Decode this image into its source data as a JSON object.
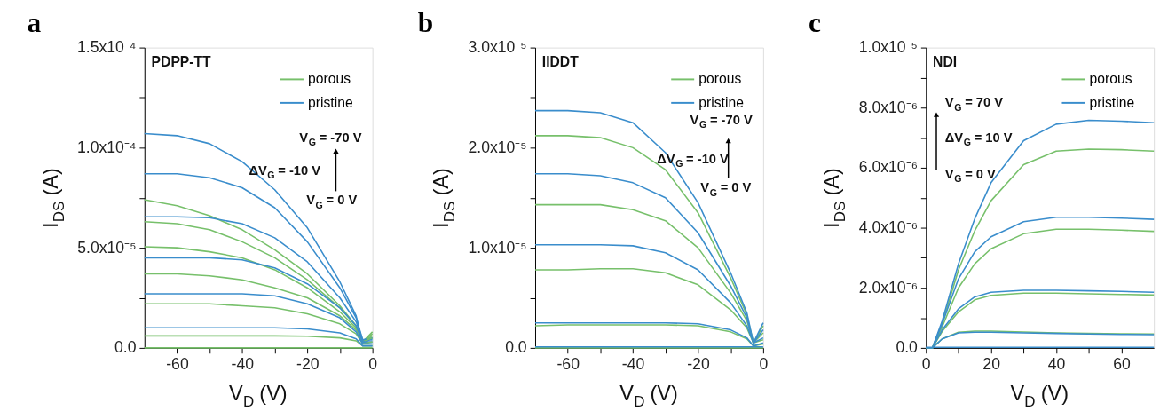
{
  "chart_data": [
    {
      "type": "line",
      "title": "a",
      "xlabel": "V$_{D}$ (V)",
      "ylabel": "I$_{DS}$ (A)",
      "legend": "top right",
      "grid": false,
      "annotations": [
        "PDPP-TT",
        "V$_{G}$ = -70 V",
        "ΔV$_{G}$ = -10 V",
        "V$_{G}$ = 0 V"
      ],
      "xlim": [
        -70,
        0
      ],
      "xticks": [
        -60,
        {
          "value": -50,
          "label": null
        },
        -40,
        {
          "value": -30,
          "label": null
        },
        -20,
        {
          "value": -10,
          "label": null
        },
        0
      ],
      "ylim": [
        0,
        0.00015
      ],
      "yticks": [
        {
          "value": 0,
          "label": "0.0"
        },
        {
          "value": 2.5e-05,
          "label": null
        },
        {
          "value": 5e-05,
          "label": "5.0x10⁻⁵"
        },
        {
          "value": 7.5e-05,
          "label": null
        },
        {
          "value": 0.0001,
          "label": "1.0x10⁻⁴"
        },
        {
          "value": 0.000125,
          "label": null
        },
        {
          "value": 0.00015,
          "label": "1.5x10⁻⁴"
        }
      ],
      "x": [
        -70,
        -60,
        -50,
        -40,
        -30,
        -20,
        -10,
        -5,
        -3,
        0
      ],
      "series": [
        {
          "name": "porous",
          "color": "#77c06b",
          "values": [
            7.4e-05,
            7.1e-05,
            6.6e-05,
            5.9e-05,
            4.9e-05,
            3.7e-05,
            2.1e-05,
            1.1e-05,
            3e-06,
            8e-06
          ]
        },
        {
          "name": "pristine",
          "color": "#3a8dcc",
          "values": [
            0.000107,
            0.000106,
            0.000102,
            9.3e-05,
            7.9e-05,
            6e-05,
            3.3e-05,
            1.6e-05,
            2e-06,
            5e-06
          ]
        },
        {
          "color": "#77c06b",
          "values": [
            6.3e-05,
            6.2e-05,
            5.9e-05,
            5.3e-05,
            4.5e-05,
            3.4e-05,
            2e-05,
            1.1e-05,
            3e-06,
            7e-06
          ]
        },
        {
          "color": "#3a8dcc",
          "values": [
            8.7e-05,
            8.7e-05,
            8.5e-05,
            8e-05,
            7e-05,
            5.3e-05,
            3e-05,
            1.5e-05,
            4e-06,
            5e-06
          ]
        },
        {
          "color": "#77c06b",
          "values": [
            5.05e-05,
            5e-05,
            4.8e-05,
            4.5e-05,
            3.9e-05,
            3e-05,
            1.8e-05,
            1e-05,
            3e-06,
            6e-06
          ]
        },
        {
          "color": "#3a8dcc",
          "values": [
            6.55e-05,
            6.55e-05,
            6.5e-05,
            6.2e-05,
            5.5e-05,
            4.3e-05,
            2.5e-05,
            1.3e-05,
            4e-06,
            4e-06
          ]
        },
        {
          "color": "#77c06b",
          "values": [
            3.7e-05,
            3.7e-05,
            3.6e-05,
            3.4e-05,
            3e-05,
            2.5e-05,
            1.6e-05,
            9e-06,
            3e-06,
            5e-06
          ]
        },
        {
          "color": "#3a8dcc",
          "values": [
            4.5e-05,
            4.5e-05,
            4.5e-05,
            4.4e-05,
            4e-05,
            3.2e-05,
            2e-05,
            1.1e-05,
            3e-06,
            3e-06
          ]
        },
        {
          "color": "#77c06b",
          "values": [
            2.2e-05,
            2.2e-05,
            2.2e-05,
            2.1e-05,
            2e-05,
            1.7e-05,
            1.2e-05,
            7e-06,
            2e-06,
            3e-06
          ]
        },
        {
          "color": "#3a8dcc",
          "values": [
            2.7e-05,
            2.7e-05,
            2.7e-05,
            2.7e-05,
            2.6e-05,
            2.2e-05,
            1.5e-05,
            8e-06,
            2e-06,
            2e-06
          ]
        },
        {
          "color": "#77c06b",
          "values": [
            6e-06,
            6e-06,
            6e-06,
            6e-06,
            6e-06,
            5.8e-06,
            5e-06,
            3.5e-06,
            1e-06,
            1e-06
          ]
        },
        {
          "color": "#3a8dcc",
          "values": [
            1e-05,
            1e-05,
            1e-05,
            1e-05,
            1e-05,
            9.5e-06,
            7.5e-06,
            4.5e-06,
            1e-06,
            1e-06
          ]
        },
        {
          "color": "#77c06b",
          "values": [
            0,
            0,
            0,
            0,
            0,
            0,
            0,
            0,
            0,
            0
          ]
        }
      ]
    },
    {
      "type": "line",
      "title": "b",
      "xlabel": "V$_{D}$ (V)",
      "ylabel": "I$_{DS}$ (A)",
      "legend": "top right",
      "grid": false,
      "annotations": [
        "IIDDT",
        "V$_{G}$ = -70 V",
        "ΔV$_{G}$ = -10 V",
        "V$_{G}$ = 0 V"
      ],
      "xlim": [
        -70,
        0
      ],
      "xticks": [
        -60,
        {
          "value": -50,
          "label": null
        },
        -40,
        {
          "value": -30,
          "label": null
        },
        -20,
        {
          "value": -10,
          "label": null
        },
        0
      ],
      "ylim": [
        0,
        3e-05
      ],
      "yticks": [
        {
          "value": 0,
          "label": "0.0"
        },
        {
          "value": 5e-06,
          "label": null
        },
        {
          "value": 1e-05,
          "label": "1.0x10⁻⁵"
        },
        {
          "value": 1.5e-05,
          "label": null
        },
        {
          "value": 2e-05,
          "label": "2.0x10⁻⁵"
        },
        {
          "value": 2.5e-05,
          "label": null
        },
        {
          "value": 3e-05,
          "label": "3.0x10⁻⁵"
        }
      ],
      "x": [
        -70,
        -60,
        -50,
        -40,
        -30,
        -20,
        -10,
        -5,
        -3,
        0
      ],
      "series": [
        {
          "name": "porous",
          "color": "#77c06b",
          "values": [
            2.12e-05,
            2.12e-05,
            2.1e-05,
            2e-05,
            1.78e-05,
            1.35e-05,
            7e-06,
            3.3e-06,
            5e-07,
            2.2e-06
          ]
        },
        {
          "name": "pristine",
          "color": "#3a8dcc",
          "values": [
            2.37e-05,
            2.37e-05,
            2.35e-05,
            2.25e-05,
            1.95e-05,
            1.45e-05,
            7.5e-06,
            3.5e-06,
            5e-07,
            2.5e-06
          ]
        },
        {
          "color": "#77c06b",
          "values": [
            1.43e-05,
            1.43e-05,
            1.43e-05,
            1.38e-05,
            1.27e-05,
            1e-05,
            5.5e-06,
            2.7e-06,
            5e-07,
            1.5e-06
          ]
        },
        {
          "color": "#3a8dcc",
          "values": [
            1.74e-05,
            1.74e-05,
            1.72e-05,
            1.65e-05,
            1.5e-05,
            1.15e-05,
            6.2e-06,
            3e-06,
            5e-07,
            1.8e-06
          ]
        },
        {
          "color": "#77c06b",
          "values": [
            7.8e-06,
            7.8e-06,
            7.9e-06,
            7.9e-06,
            7.5e-06,
            6.3e-06,
            3.8e-06,
            2e-06,
            5e-07,
            8e-07
          ]
        },
        {
          "color": "#3a8dcc",
          "values": [
            1.03e-05,
            1.03e-05,
            1.03e-05,
            1.02e-05,
            9.5e-06,
            7.8e-06,
            4.5e-06,
            2.2e-06,
            5e-07,
            1e-06
          ]
        },
        {
          "color": "#77c06b",
          "values": [
            2.2e-06,
            2.3e-06,
            2.3e-06,
            2.3e-06,
            2.3e-06,
            2.2e-06,
            1.6e-06,
            9e-07,
            2e-07,
            4e-07
          ]
        },
        {
          "color": "#3a8dcc",
          "values": [
            2.5e-06,
            2.5e-06,
            2.5e-06,
            2.5e-06,
            2.5e-06,
            2.4e-06,
            1.8e-06,
            1e-06,
            2e-07,
            5e-07
          ]
        },
        {
          "color": "#77c06b",
          "values": [
            0,
            0,
            0,
            0,
            0,
            0,
            0,
            0,
            0,
            0
          ]
        },
        {
          "color": "#3a8dcc",
          "values": [
            1e-07,
            1e-07,
            1e-07,
            1e-07,
            1e-07,
            1e-07,
            1e-07,
            1e-07,
            1e-07,
            1e-07
          ]
        }
      ]
    },
    {
      "type": "line",
      "title": "c",
      "xlabel": "V$_{D}$ (V)",
      "ylabel": "I$_{DS}$ (A)",
      "legend": "top right",
      "grid": false,
      "annotations": [
        "NDI",
        "V$_{G}$ = 70 V",
        "ΔV$_{G}$ = 10 V",
        "V$_{G}$ = 0 V"
      ],
      "xlim": [
        0,
        70
      ],
      "xticks": [
        0,
        {
          "value": 10,
          "label": null
        },
        20,
        {
          "value": 30,
          "label": null
        },
        40,
        {
          "value": 50,
          "label": null
        },
        60
      ],
      "ylim": [
        0,
        1e-05
      ],
      "yticks": [
        {
          "value": 0,
          "label": "0.0"
        },
        {
          "value": 1e-06,
          "label": null
        },
        {
          "value": 2e-06,
          "label": "2.0x10⁻⁶"
        },
        {
          "value": 3e-06,
          "label": null
        },
        {
          "value": 4e-06,
          "label": "4.0x10⁻⁶"
        },
        {
          "value": 5e-06,
          "label": null
        },
        {
          "value": 6e-06,
          "label": "6.0x10⁻⁶"
        },
        {
          "value": 7e-06,
          "label": null
        },
        {
          "value": 8e-06,
          "label": "8.0x10⁻⁶"
        },
        {
          "value": 9e-06,
          "label": null
        },
        {
          "value": 1e-05,
          "label": "1.0x10⁻⁵"
        }
      ],
      "x": [
        0,
        2,
        5,
        10,
        15,
        20,
        30,
        40,
        50,
        60,
        70
      ],
      "series": [
        {
          "name": "porous",
          "color": "#77c06b",
          "values": [
            0,
            0,
            8e-07,
            2.6e-06,
            3.9e-06,
            4.9e-06,
            6.1e-06,
            6.55e-06,
            6.62e-06,
            6.6e-06,
            6.55e-06
          ]
        },
        {
          "name": "pristine",
          "color": "#3a8dcc",
          "values": [
            0,
            0,
            9e-07,
            2.8e-06,
            4.3e-06,
            5.5e-06,
            6.9e-06,
            7.45e-06,
            7.58e-06,
            7.55e-06,
            7.5e-06
          ]
        },
        {
          "color": "#77c06b",
          "values": [
            0,
            0,
            7e-07,
            2e-06,
            2.8e-06,
            3.3e-06,
            3.8e-06,
            3.95e-06,
            3.95e-06,
            3.92e-06,
            3.88e-06
          ]
        },
        {
          "color": "#3a8dcc",
          "values": [
            0,
            0,
            8e-07,
            2.3e-06,
            3.2e-06,
            3.7e-06,
            4.2e-06,
            4.35e-06,
            4.35e-06,
            4.32e-06,
            4.28e-06
          ]
        },
        {
          "color": "#77c06b",
          "values": [
            0,
            0,
            5.5e-07,
            1.2e-06,
            1.6e-06,
            1.75e-06,
            1.82e-06,
            1.82e-06,
            1.8e-06,
            1.78e-06,
            1.76e-06
          ]
        },
        {
          "color": "#3a8dcc",
          "values": [
            0,
            0,
            6e-07,
            1.3e-06,
            1.7e-06,
            1.85e-06,
            1.92e-06,
            1.92e-06,
            1.9e-06,
            1.88e-06,
            1.85e-06
          ]
        },
        {
          "color": "#77c06b",
          "values": [
            0,
            0,
            3e-07,
            5.2e-07,
            5.6e-07,
            5.6e-07,
            5.3e-07,
            5e-07,
            4.8e-07,
            4.7e-07,
            4.6e-07
          ]
        },
        {
          "color": "#3a8dcc",
          "values": [
            0,
            0,
            3e-07,
            5e-07,
            5.2e-07,
            5.2e-07,
            5e-07,
            4.8e-07,
            4.6e-07,
            4.5e-07,
            4.4e-07
          ]
        },
        {
          "color": "#3a8dcc",
          "values": [
            2e-08,
            2e-08,
            2e-08,
            2e-08,
            2e-08,
            2e-08,
            2e-08,
            2e-08,
            2e-08,
            2e-08,
            2e-08
          ]
        }
      ]
    }
  ]
}
